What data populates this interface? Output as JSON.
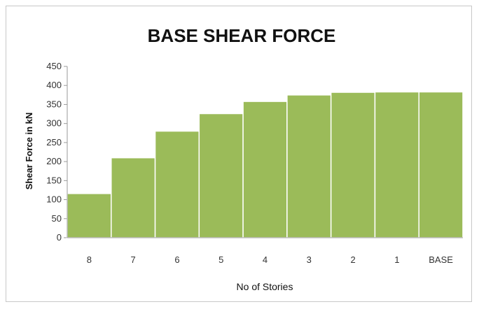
{
  "chart_data": {
    "type": "bar",
    "title": "BASE SHEAR FORCE",
    "xlabel": "No of Stories",
    "ylabel": "Shear Force in kN",
    "categories": [
      "8",
      "7",
      "6",
      "5",
      "4",
      "3",
      "2",
      "1",
      "BASE"
    ],
    "values": [
      116,
      210,
      280,
      326,
      358,
      375,
      382,
      383,
      383
    ],
    "ylim": [
      0,
      450
    ],
    "yticks": [
      0,
      50,
      100,
      150,
      200,
      250,
      300,
      350,
      400,
      450
    ],
    "grid": false,
    "legend": "none",
    "bar_color": "#9bbb59",
    "bar_edge_color": "#ffffff"
  }
}
